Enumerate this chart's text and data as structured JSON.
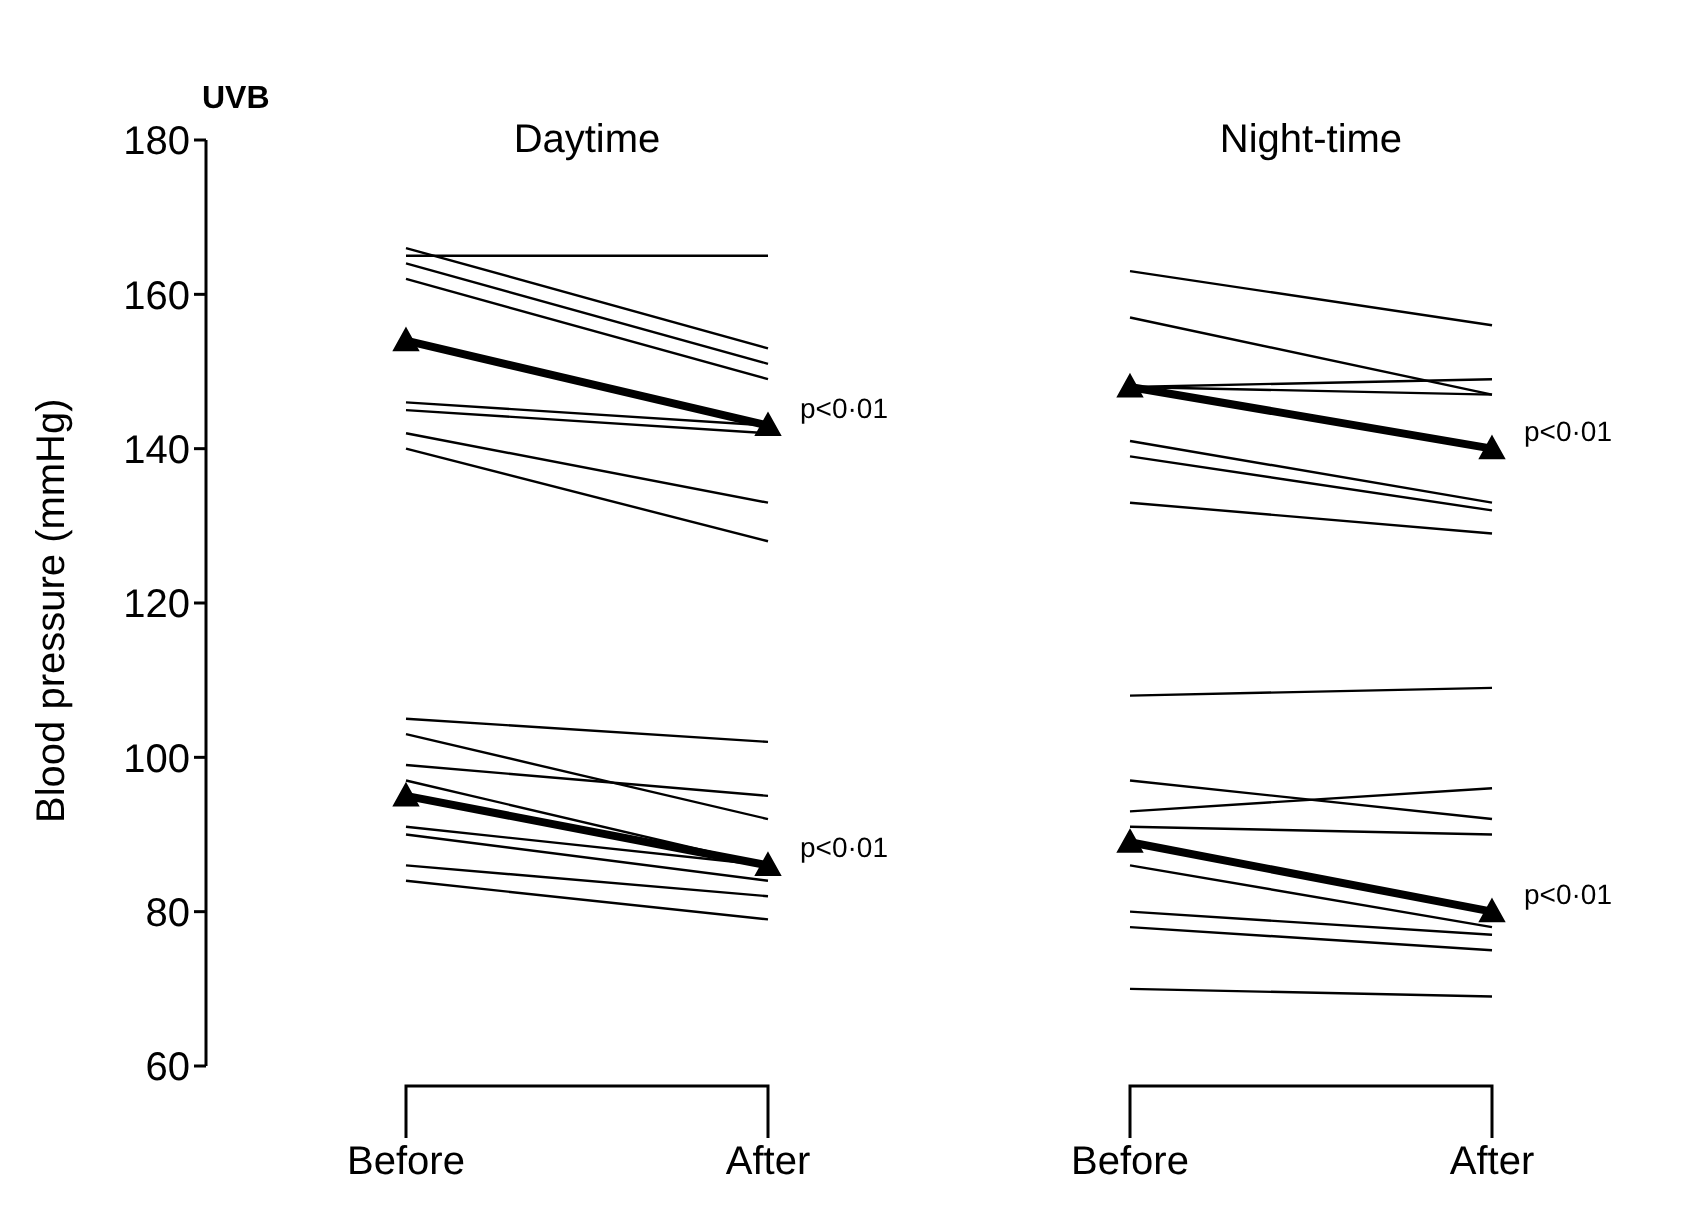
{
  "chart_data": {
    "type": "line",
    "title": "UVB",
    "ylabel": "Blood pressure (mmHg)",
    "categories": [
      "Before",
      "After",
      "Before",
      "After"
    ],
    "ylim": [
      60,
      180
    ],
    "yticks": [
      60,
      80,
      100,
      120,
      140,
      160,
      180
    ],
    "grid": false,
    "legend": false,
    "line_style": "solid",
    "annotations": [
      "Daytime",
      "Night-time",
      "p<0·01",
      "p<0·01",
      "p<0·01",
      "p<0·01"
    ],
    "series": [
      {
        "color": "#000000",
        "values": [
          165,
          165,
          null,
          null
        ]
      },
      {
        "color": "#000000",
        "values": [
          166,
          153,
          null,
          null
        ]
      },
      {
        "color": "#000000",
        "values": [
          164,
          151,
          null,
          null
        ]
      },
      {
        "color": "#000000",
        "values": [
          162,
          149,
          null,
          null
        ]
      },
      {
        "color": "#000000",
        "values": [
          146,
          143,
          null,
          null
        ]
      },
      {
        "color": "#000000",
        "values": [
          145,
          142,
          null,
          null
        ]
      },
      {
        "color": "#000000",
        "values": [
          142,
          133,
          null,
          null
        ]
      },
      {
        "color": "#000000",
        "values": [
          140,
          128,
          null,
          null
        ]
      },
      {
        "color": "#000000",
        "values": [
          154,
          143,
          null,
          null
        ],
        "marker": "triangle"
      },
      {
        "color": "#000000",
        "values": [
          105,
          102,
          null,
          null
        ]
      },
      {
        "color": "#000000",
        "values": [
          103,
          92,
          null,
          null
        ]
      },
      {
        "color": "#000000",
        "values": [
          99,
          95,
          null,
          null
        ]
      },
      {
        "color": "#000000",
        "values": [
          97,
          86,
          null,
          null
        ]
      },
      {
        "color": "#000000",
        "values": [
          91,
          86,
          null,
          null
        ]
      },
      {
        "color": "#000000",
        "values": [
          90,
          84,
          null,
          null
        ]
      },
      {
        "color": "#000000",
        "values": [
          86,
          82,
          null,
          null
        ]
      },
      {
        "color": "#000000",
        "values": [
          84,
          79,
          null,
          null
        ]
      },
      {
        "color": "#000000",
        "values": [
          95,
          86,
          null,
          null
        ],
        "marker": "triangle"
      },
      {
        "color": "#000000",
        "values": [
          null,
          null,
          163,
          156
        ]
      },
      {
        "color": "#000000",
        "values": [
          null,
          null,
          157,
          147
        ]
      },
      {
        "color": "#000000",
        "values": [
          null,
          null,
          148,
          149
        ]
      },
      {
        "color": "#000000",
        "values": [
          null,
          null,
          148,
          147
        ]
      },
      {
        "color": "#000000",
        "values": [
          null,
          null,
          141,
          133
        ]
      },
      {
        "color": "#000000",
        "values": [
          null,
          null,
          139,
          132
        ]
      },
      {
        "color": "#000000",
        "values": [
          null,
          null,
          133,
          129
        ]
      },
      {
        "color": "#000000",
        "values": [
          null,
          null,
          148,
          140
        ],
        "marker": "triangle"
      },
      {
        "color": "#000000",
        "values": [
          null,
          null,
          108,
          109
        ]
      },
      {
        "color": "#000000",
        "values": [
          null,
          null,
          97,
          92
        ]
      },
      {
        "color": "#000000",
        "values": [
          null,
          null,
          93,
          96
        ]
      },
      {
        "color": "#000000",
        "values": [
          null,
          null,
          91,
          90
        ]
      },
      {
        "color": "#000000",
        "values": [
          null,
          null,
          86,
          78
        ]
      },
      {
        "color": "#000000",
        "values": [
          null,
          null,
          80,
          77
        ]
      },
      {
        "color": "#000000",
        "values": [
          null,
          null,
          78,
          75
        ]
      },
      {
        "color": "#000000",
        "values": [
          null,
          null,
          70,
          69
        ]
      },
      {
        "color": "#000000",
        "values": [
          null,
          null,
          89,
          80
        ],
        "marker": "triangle"
      }
    ]
  }
}
